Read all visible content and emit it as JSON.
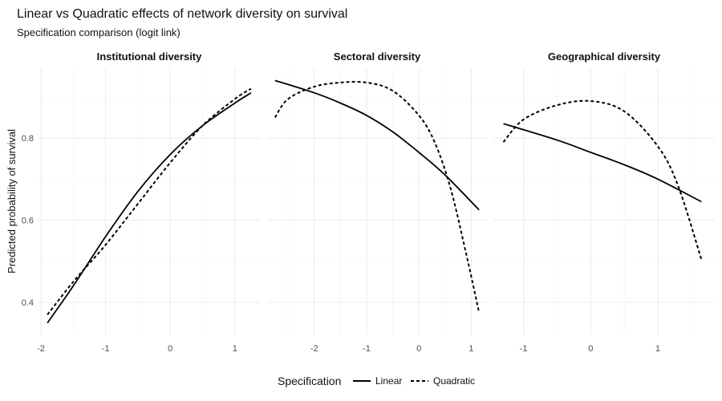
{
  "title": "Linear vs Quadratic effects of network diversity on survival",
  "subtitle": "Specification comparison (logit link)",
  "ylabel": "Predicted probability of survival",
  "legend": {
    "title": "Specification",
    "entries": [
      {
        "label": "Linear",
        "dash": "solid"
      },
      {
        "label": "Quadratic",
        "dash": "dashed"
      }
    ]
  },
  "chart_data": [
    {
      "type": "line",
      "facet": "Institutional diversity",
      "xlim": [
        -2.05,
        1.4
      ],
      "ylim": [
        0.32,
        0.97
      ],
      "xticks": [
        -2,
        -1,
        0,
        1
      ],
      "yticks": [
        0.4,
        0.6,
        0.8
      ],
      "series": [
        {
          "name": "Linear",
          "x": [
            -1.9,
            -1.5,
            -1.0,
            -0.5,
            0.0,
            0.5,
            1.0,
            1.25
          ],
          "y": [
            0.35,
            0.44,
            0.56,
            0.67,
            0.76,
            0.83,
            0.885,
            0.91
          ]
        },
        {
          "name": "Quadratic",
          "x": [
            -1.9,
            -1.5,
            -1.0,
            -0.5,
            0.0,
            0.5,
            1.0,
            1.25
          ],
          "y": [
            0.37,
            0.45,
            0.54,
            0.64,
            0.74,
            0.83,
            0.895,
            0.92
          ]
        }
      ]
    },
    {
      "type": "line",
      "facet": "Sectoral diversity",
      "xlim": [
        -2.9,
        1.3
      ],
      "ylim": [
        0.32,
        0.97
      ],
      "xticks": [
        -2,
        -1,
        0,
        1
      ],
      "yticks": [
        0.4,
        0.6,
        0.8
      ],
      "series": [
        {
          "name": "Linear",
          "x": [
            -2.75,
            -2.0,
            -1.5,
            -1.0,
            -0.5,
            0.0,
            0.5,
            1.15
          ],
          "y": [
            0.94,
            0.91,
            0.885,
            0.855,
            0.815,
            0.765,
            0.71,
            0.625
          ]
        },
        {
          "name": "Quadratic",
          "x": [
            -2.75,
            -2.5,
            -2.0,
            -1.5,
            -1.0,
            -0.5,
            0.0,
            0.3,
            0.6,
            0.9,
            1.15
          ],
          "y": [
            0.85,
            0.895,
            0.925,
            0.935,
            0.935,
            0.915,
            0.855,
            0.79,
            0.68,
            0.52,
            0.375
          ]
        }
      ]
    },
    {
      "type": "line",
      "facet": "Geographical diversity",
      "xlim": [
        -1.45,
        1.85
      ],
      "ylim": [
        0.32,
        0.97
      ],
      "xticks": [
        -1,
        0,
        1
      ],
      "yticks": [
        0.4,
        0.6,
        0.8
      ],
      "series": [
        {
          "name": "Linear",
          "x": [
            -1.3,
            -0.5,
            0.0,
            0.5,
            1.0,
            1.65
          ],
          "y": [
            0.835,
            0.795,
            0.765,
            0.735,
            0.7,
            0.645
          ]
        },
        {
          "name": "Quadratic",
          "x": [
            -1.3,
            -1.0,
            -0.5,
            0.0,
            0.5,
            1.0,
            1.3,
            1.65
          ],
          "y": [
            0.79,
            0.845,
            0.88,
            0.89,
            0.865,
            0.78,
            0.685,
            0.505
          ]
        }
      ]
    }
  ]
}
